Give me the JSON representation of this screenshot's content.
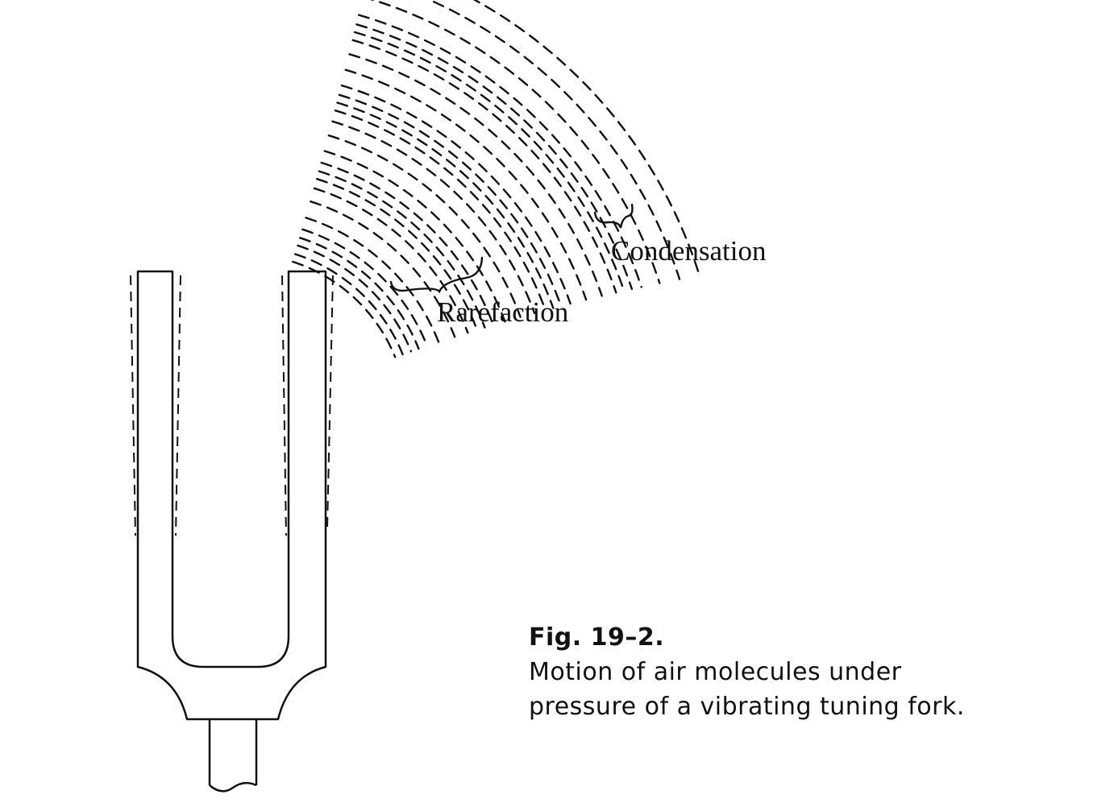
{
  "labels": {
    "condensation": "Condensation",
    "rarefaction": "Rarefaction"
  },
  "caption": {
    "figure_number": "Fig. 19–2.",
    "lines": [
      "Motion of air molecules under",
      "pressure of a vibrating tuning fork."
    ]
  },
  "colors": {
    "ink": "#111111",
    "background": "#ffffff"
  }
}
